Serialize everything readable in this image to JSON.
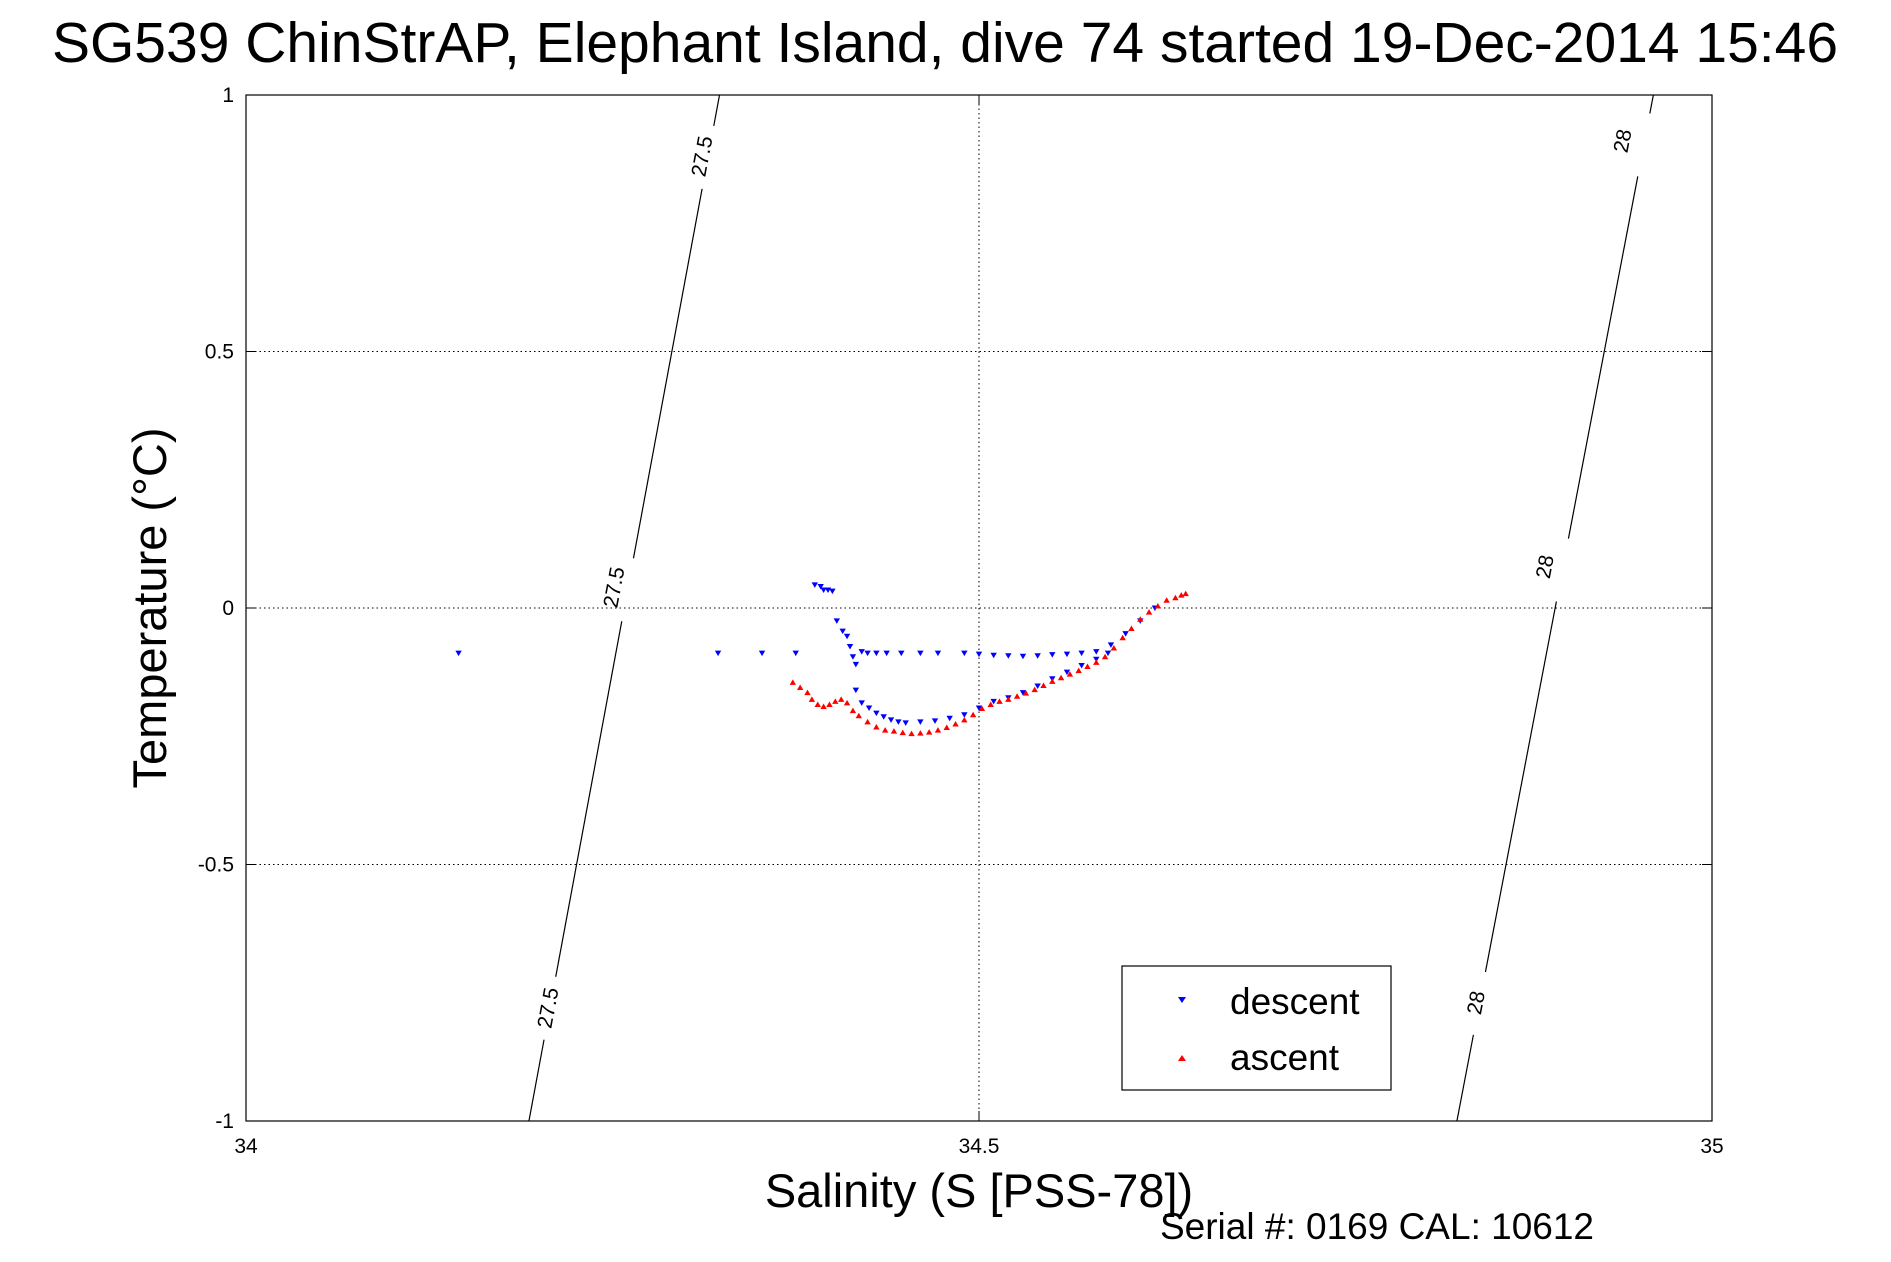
{
  "chart_data": {
    "type": "scatter",
    "title": "SG539 ChinStrAP, Elephant Island, dive 74 started 19-Dec-2014 15:46",
    "xlabel": "Salinity (S [PSS-78])",
    "ylabel": "Temperature (°C)",
    "footer": "Serial #: 0169 CAL: 10612",
    "xlim": [
      34,
      35
    ],
    "ylim": [
      -1,
      1
    ],
    "xticks": [
      34,
      34.5,
      35
    ],
    "xtick_labels": [
      "34",
      "34.5",
      "35"
    ],
    "yticks": [
      -1,
      -0.5,
      0,
      0.5,
      1
    ],
    "ytick_labels": [
      "-1",
      "-0.5",
      "0",
      "0.5",
      "1"
    ],
    "grid": true,
    "legend_position": "bottom-right",
    "isopycnals": [
      {
        "label": "27.5",
        "line": [
          [
            34.193,
            -1
          ],
          [
            34.323,
            1
          ]
        ],
        "labels_at": [
          [
            34.207,
            -0.78
          ],
          [
            34.252,
            0.04
          ],
          [
            34.312,
            0.88
          ]
        ]
      },
      {
        "label": "28",
        "line": [
          [
            34.826,
            -1
          ],
          [
            34.96,
            1
          ]
        ],
        "labels_at": [
          [
            34.84,
            -0.77
          ],
          [
            34.887,
            0.08
          ],
          [
            34.94,
            0.91
          ]
        ]
      }
    ],
    "series": [
      {
        "name": "descent",
        "color": "#0000ff",
        "marker": "triangle-down",
        "points": [
          [
            34.145,
            -0.088
          ],
          [
            34.322,
            -0.088
          ],
          [
            34.352,
            -0.088
          ],
          [
            34.375,
            -0.088
          ],
          [
            34.388,
            0.045
          ],
          [
            34.392,
            0.042
          ],
          [
            34.394,
            0.035
          ],
          [
            34.397,
            0.035
          ],
          [
            34.4,
            0.033
          ],
          [
            34.403,
            -0.025
          ],
          [
            34.407,
            -0.045
          ],
          [
            34.41,
            -0.055
          ],
          [
            34.412,
            -0.075
          ],
          [
            34.414,
            -0.095
          ],
          [
            34.416,
            -0.11
          ],
          [
            34.42,
            -0.085
          ],
          [
            34.424,
            -0.088
          ],
          [
            34.43,
            -0.088
          ],
          [
            34.437,
            -0.088
          ],
          [
            34.447,
            -0.088
          ],
          [
            34.46,
            -0.088
          ],
          [
            34.472,
            -0.088
          ],
          [
            34.416,
            -0.16
          ],
          [
            34.42,
            -0.185
          ],
          [
            34.425,
            -0.195
          ],
          [
            34.43,
            -0.205
          ],
          [
            34.435,
            -0.212
          ],
          [
            34.44,
            -0.218
          ],
          [
            34.445,
            -0.222
          ],
          [
            34.45,
            -0.224
          ],
          [
            34.46,
            -0.222
          ],
          [
            34.47,
            -0.22
          ],
          [
            34.48,
            -0.215
          ],
          [
            34.49,
            -0.208
          ],
          [
            34.5,
            -0.195
          ],
          [
            34.51,
            -0.182
          ],
          [
            34.52,
            -0.175
          ],
          [
            34.53,
            -0.165
          ],
          [
            34.54,
            -0.152
          ],
          [
            34.55,
            -0.138
          ],
          [
            34.56,
            -0.125
          ],
          [
            34.57,
            -0.112
          ],
          [
            34.58,
            -0.1
          ],
          [
            34.588,
            -0.088
          ],
          [
            34.49,
            -0.088
          ],
          [
            34.5,
            -0.09
          ],
          [
            34.51,
            -0.092
          ],
          [
            34.52,
            -0.093
          ],
          [
            34.53,
            -0.094
          ],
          [
            34.54,
            -0.093
          ],
          [
            34.55,
            -0.091
          ],
          [
            34.56,
            -0.09
          ],
          [
            34.57,
            -0.088
          ],
          [
            34.58,
            -0.085
          ],
          [
            34.59,
            -0.072
          ],
          [
            34.6,
            -0.05
          ],
          [
            34.61,
            -0.025
          ],
          [
            34.62,
            0.0
          ]
        ]
      },
      {
        "name": "ascent",
        "color": "#ff0000",
        "marker": "triangle-up",
        "points": [
          [
            34.373,
            -0.145
          ],
          [
            34.378,
            -0.155
          ],
          [
            34.383,
            -0.165
          ],
          [
            34.386,
            -0.178
          ],
          [
            34.39,
            -0.188
          ],
          [
            34.394,
            -0.192
          ],
          [
            34.398,
            -0.188
          ],
          [
            34.402,
            -0.182
          ],
          [
            34.406,
            -0.178
          ],
          [
            34.41,
            -0.185
          ],
          [
            34.414,
            -0.2
          ],
          [
            34.418,
            -0.21
          ],
          [
            34.424,
            -0.222
          ],
          [
            34.43,
            -0.232
          ],
          [
            34.436,
            -0.238
          ],
          [
            34.442,
            -0.24
          ],
          [
            34.448,
            -0.243
          ],
          [
            34.454,
            -0.245
          ],
          [
            34.46,
            -0.244
          ],
          [
            34.466,
            -0.242
          ],
          [
            34.472,
            -0.238
          ],
          [
            34.478,
            -0.233
          ],
          [
            34.484,
            -0.226
          ],
          [
            34.49,
            -0.218
          ],
          [
            34.496,
            -0.208
          ],
          [
            34.502,
            -0.196
          ],
          [
            34.508,
            -0.188
          ],
          [
            34.514,
            -0.182
          ],
          [
            34.52,
            -0.178
          ],
          [
            34.526,
            -0.172
          ],
          [
            34.532,
            -0.166
          ],
          [
            34.538,
            -0.159
          ],
          [
            34.544,
            -0.151
          ],
          [
            34.55,
            -0.143
          ],
          [
            34.556,
            -0.136
          ],
          [
            34.562,
            -0.129
          ],
          [
            34.568,
            -0.122
          ],
          [
            34.574,
            -0.114
          ],
          [
            34.58,
            -0.106
          ],
          [
            34.586,
            -0.095
          ],
          [
            34.592,
            -0.078
          ],
          [
            34.598,
            -0.058
          ],
          [
            34.604,
            -0.04
          ],
          [
            34.61,
            -0.022
          ],
          [
            34.616,
            -0.008
          ],
          [
            34.622,
            0.004
          ],
          [
            34.628,
            0.015
          ],
          [
            34.634,
            0.02
          ],
          [
            34.638,
            0.025
          ],
          [
            34.641,
            0.028
          ]
        ]
      }
    ]
  }
}
